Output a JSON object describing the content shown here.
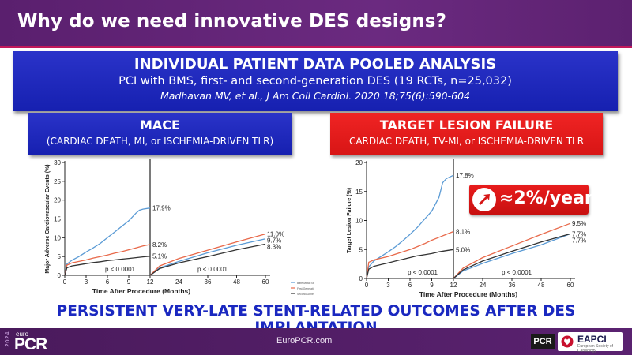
{
  "header": {
    "title": "Why do we need innovative DES designs?"
  },
  "banner": {
    "title": "INDIVIDUAL PATIENT DATA POOLED ANALYSIS",
    "subtitle": "PCI with BMS, first- and second-generation DES (19 RCTs, n=25,032)",
    "citation": "Madhavan MV, et al., J Am Coll Cardiol. 2020 18;75(6):590-604"
  },
  "mace_box": {
    "title": "MACE",
    "subtitle": "(CARDIAC DEATH, MI, or ISCHEMIA-DRIVEN TLR)"
  },
  "tlf_box": {
    "title": "TARGET LESION FAILURE",
    "subtitle": "CARDIAC DEATH, TV-MI, or ISCHEMIA-DRIVEN TLR"
  },
  "badge": {
    "text": "≈2%/year",
    "icon": "up-arrow-icon"
  },
  "conclusion": "PERSISTENT VERY-LATE STENT-RELATED OUTCOMES AFTER DES IMPLANTATION",
  "footer": {
    "logo_year": "2024",
    "logo_euro": "euro",
    "logo_pcr": "PCR",
    "center_text": "EuroPCR.com",
    "pcr_small": "PCR",
    "eapci": "EAPCI",
    "eapci_sub": "European Society of Cardiology"
  },
  "colors": {
    "bms": "#5b9bd5",
    "des1": "#e8694a",
    "des2": "#333333",
    "blue_box": "#1f29c0",
    "red_box": "#e31b1b",
    "header": "#5c2170"
  },
  "chart_data": [
    {
      "type": "line",
      "ylabel": "Major Adverse Cardiovascular Events (%)",
      "xlabel": "Time After Procedure (Months)",
      "ylim": [
        0,
        30
      ],
      "yticks": [
        0,
        5,
        10,
        15,
        20,
        25,
        30
      ],
      "xticks": [
        0,
        3,
        6,
        9,
        12,
        24,
        36,
        48,
        60
      ],
      "landmark_month": 12,
      "p_values": [
        "p < 0.0001",
        "p < 0.0001"
      ],
      "legend": [
        "Bare-Metal Stent (BMS)",
        "First-Generation Drug-Eluting Stent (DES1)",
        "Second-Generation Drug-Eluting Stent (DES2)"
      ],
      "series": [
        {
          "name": "Bare-Metal Stent (BMS)",
          "early": [
            [
              0,
              0
            ],
            [
              0.3,
              3
            ],
            [
              1,
              4
            ],
            [
              2,
              5
            ],
            [
              3,
              6.2
            ],
            [
              4,
              7.3
            ],
            [
              5,
              8.5
            ],
            [
              6,
              10
            ],
            [
              7,
              11.5
            ],
            [
              8,
              13
            ],
            [
              9,
              14.5
            ],
            [
              10,
              16.5
            ],
            [
              10.5,
              17.3
            ],
            [
              11,
              17.6
            ],
            [
              12,
              17.9
            ]
          ],
          "late": [
            [
              12,
              0
            ],
            [
              16,
              2
            ],
            [
              24,
              3.7
            ],
            [
              36,
              6
            ],
            [
              48,
              8
            ],
            [
              60,
              9.7
            ]
          ],
          "end_labels": [
            "17.9%",
            "9.7%"
          ]
        },
        {
          "name": "First-Generation Drug-Eluting Stent (DES1)",
          "early": [
            [
              0,
              0
            ],
            [
              0.3,
              2.7
            ],
            [
              1,
              3.3
            ],
            [
              2,
              3.7
            ],
            [
              3,
              4.1
            ],
            [
              4,
              4.6
            ],
            [
              5,
              5
            ],
            [
              6,
              5.4
            ],
            [
              7,
              5.9
            ],
            [
              8,
              6.3
            ],
            [
              9,
              6.8
            ],
            [
              10,
              7.3
            ],
            [
              11,
              7.8
            ],
            [
              12,
              8.2
            ]
          ],
          "late": [
            [
              12,
              0
            ],
            [
              16,
              2.5
            ],
            [
              24,
              4.5
            ],
            [
              36,
              6.7
            ],
            [
              48,
              8.9
            ],
            [
              60,
              11
            ]
          ],
          "end_labels": [
            "8.2%",
            "11.0%"
          ]
        },
        {
          "name": "Second-Generation Drug-Eluting Stent (DES2)",
          "early": [
            [
              0,
              0
            ],
            [
              0.3,
              2
            ],
            [
              1,
              2.5
            ],
            [
              2,
              2.8
            ],
            [
              3,
              3.1
            ],
            [
              4,
              3.4
            ],
            [
              5,
              3.6
            ],
            [
              6,
              3.9
            ],
            [
              7,
              4.1
            ],
            [
              8,
              4.3
            ],
            [
              9,
              4.5
            ],
            [
              10,
              4.7
            ],
            [
              11,
              4.9
            ],
            [
              12,
              5.1
            ]
          ],
          "late": [
            [
              12,
              0
            ],
            [
              16,
              1.8
            ],
            [
              24,
              3.3
            ],
            [
              36,
              5
            ],
            [
              48,
              6.8
            ],
            [
              60,
              8.3
            ]
          ],
          "end_labels": [
            "5.1%",
            "8.3%"
          ]
        }
      ]
    },
    {
      "type": "line",
      "ylabel": "Target Lesion Failure (%)",
      "xlabel": "Time After Procedure (Months)",
      "ylim": [
        0,
        20
      ],
      "yticks": [
        0,
        5,
        10,
        15,
        20
      ],
      "xticks": [
        0,
        3,
        6,
        9,
        12,
        24,
        36,
        48,
        60
      ],
      "landmark_month": 12,
      "p_values": [
        "p < 0.0001",
        "p < 0.0001"
      ],
      "series": [
        {
          "name": "Bare-Metal Stent (BMS)",
          "early": [
            [
              0,
              0
            ],
            [
              0.3,
              2
            ],
            [
              1,
              3
            ],
            [
              2,
              3.8
            ],
            [
              3,
              4.6
            ],
            [
              4,
              5.5
            ],
            [
              5,
              6.5
            ],
            [
              6,
              7.6
            ],
            [
              7,
              8.8
            ],
            [
              8,
              10.2
            ],
            [
              9,
              11.6
            ],
            [
              10,
              14
            ],
            [
              10.5,
              16.5
            ],
            [
              11,
              17.2
            ],
            [
              12,
              17.8
            ]
          ],
          "late": [
            [
              12,
              0
            ],
            [
              16,
              1.3
            ],
            [
              24,
              2.6
            ],
            [
              36,
              4.3
            ],
            [
              48,
              5.8
            ],
            [
              60,
              7.7
            ]
          ],
          "end_labels": [
            "17.8%",
            "7.7%"
          ]
        },
        {
          "name": "First-Generation Drug-Eluting Stent (DES1)",
          "early": [
            [
              0,
              0
            ],
            [
              0.3,
              2.8
            ],
            [
              1,
              3.2
            ],
            [
              2,
              3.5
            ],
            [
              3,
              3.8
            ],
            [
              4,
              4.2
            ],
            [
              5,
              4.6
            ],
            [
              6,
              5
            ],
            [
              7,
              5.5
            ],
            [
              8,
              6
            ],
            [
              9,
              6.6
            ],
            [
              10,
              7.1
            ],
            [
              11,
              7.6
            ],
            [
              12,
              8.1
            ]
          ],
          "late": [
            [
              12,
              0
            ],
            [
              16,
              1.8
            ],
            [
              24,
              3.6
            ],
            [
              36,
              5.6
            ],
            [
              48,
              7.6
            ],
            [
              60,
              9.5
            ]
          ],
          "end_labels": [
            "8.1%",
            "9.5%"
          ]
        },
        {
          "name": "Second-Generation Drug-Eluting Stent (DES2)",
          "early": [
            [
              0,
              0
            ],
            [
              0.3,
              1.6
            ],
            [
              1,
              2.1
            ],
            [
              2,
              2.4
            ],
            [
              3,
              2.7
            ],
            [
              4,
              3
            ],
            [
              5,
              3.3
            ],
            [
              6,
              3.6
            ],
            [
              7,
              3.9
            ],
            [
              8,
              4.1
            ],
            [
              9,
              4.3
            ],
            [
              10,
              4.6
            ],
            [
              11,
              4.8
            ],
            [
              12,
              5
            ]
          ],
          "late": [
            [
              12,
              0
            ],
            [
              16,
              1.5
            ],
            [
              24,
              3
            ],
            [
              36,
              4.7
            ],
            [
              48,
              6.3
            ],
            [
              60,
              7.7
            ]
          ],
          "end_labels": [
            "5.0%",
            "7.7%"
          ]
        }
      ]
    }
  ]
}
